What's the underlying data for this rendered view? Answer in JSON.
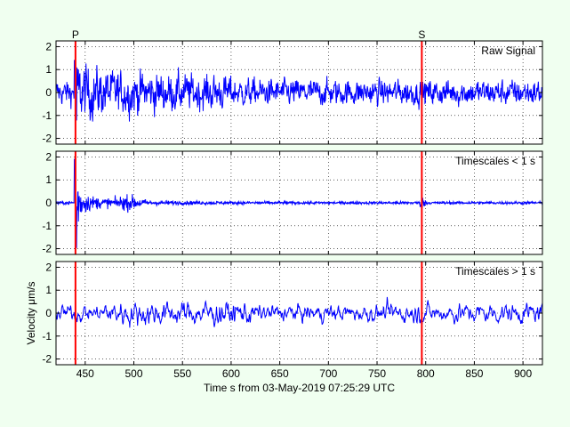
{
  "chart_data": {
    "type": "line",
    "xlabel": "Time s from 03-May-2019 07:25:29 UTC",
    "ylabel": "Velocity μm/s",
    "xlim": [
      420,
      920
    ],
    "xticks": [
      450,
      500,
      550,
      600,
      650,
      700,
      750,
      800,
      850,
      900
    ],
    "grid": true,
    "phases": [
      {
        "label": "P",
        "time": 440
      },
      {
        "label": "S",
        "time": 796
      }
    ],
    "panels": [
      {
        "title": "Raw Signal",
        "ylim": [
          -2.25,
          2.25
        ],
        "yticks": [
          -2,
          -1,
          0,
          1,
          2
        ],
        "series_color": "#0000ff",
        "band": "raw"
      },
      {
        "title": "Timescales < 1 s",
        "ylim": [
          -2.25,
          2.25
        ],
        "yticks": [
          -2,
          -1,
          0,
          1,
          2
        ],
        "series_color": "#0000ff",
        "band": "short"
      },
      {
        "title": "Timescales > 1 s",
        "ylim": [
          -2.25,
          2.25
        ],
        "yticks": [
          -2,
          -1,
          0,
          1,
          2
        ],
        "series_color": "#0000ff",
        "band": "long"
      }
    ],
    "phase_color": "#ff0000"
  }
}
